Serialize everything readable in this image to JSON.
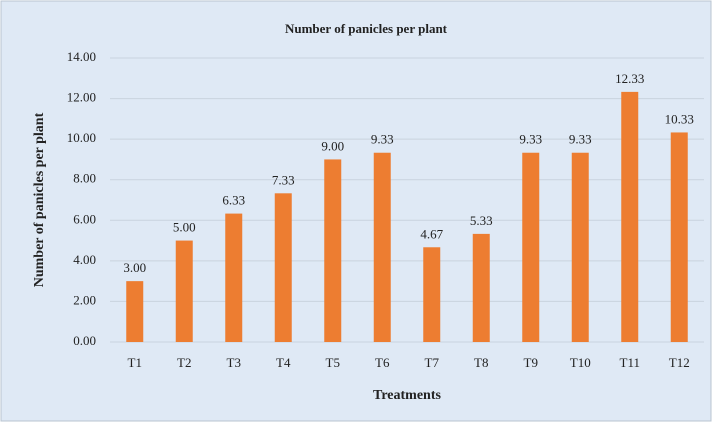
{
  "chart_data": {
    "type": "bar",
    "title": "Number of panicles per plant",
    "x_label": "Treatments",
    "y_label": "Number of panicles per plant",
    "categories": [
      "T1",
      "T2",
      "T3",
      "T4",
      "T5",
      "T6",
      "T7",
      "T8",
      "T9",
      "T10",
      "T11",
      "T12"
    ],
    "values": [
      3.0,
      5.0,
      6.33,
      7.33,
      9.0,
      9.33,
      4.67,
      5.33,
      9.33,
      9.33,
      12.33,
      10.33
    ],
    "value_labels": [
      "3.00",
      "5.00",
      "6.33",
      "7.33",
      "9.00",
      "9.33",
      "4.67",
      "5.33",
      "9.33",
      "9.33",
      "12.33",
      "10.33"
    ],
    "color": "#ed7d31",
    "ylim": [
      0,
      14
    ],
    "yticks": [
      {
        "value": 0,
        "label": "0.00"
      },
      {
        "value": 2,
        "label": "2.00"
      },
      {
        "value": 4,
        "label": "4.00"
      },
      {
        "value": 6,
        "label": "6.00"
      },
      {
        "value": 8,
        "label": "8.00"
      },
      {
        "value": 10,
        "label": "10.00"
      },
      {
        "value": 12,
        "label": "12.00"
      },
      {
        "value": 14,
        "label": "14.00"
      }
    ],
    "grid": true
  }
}
